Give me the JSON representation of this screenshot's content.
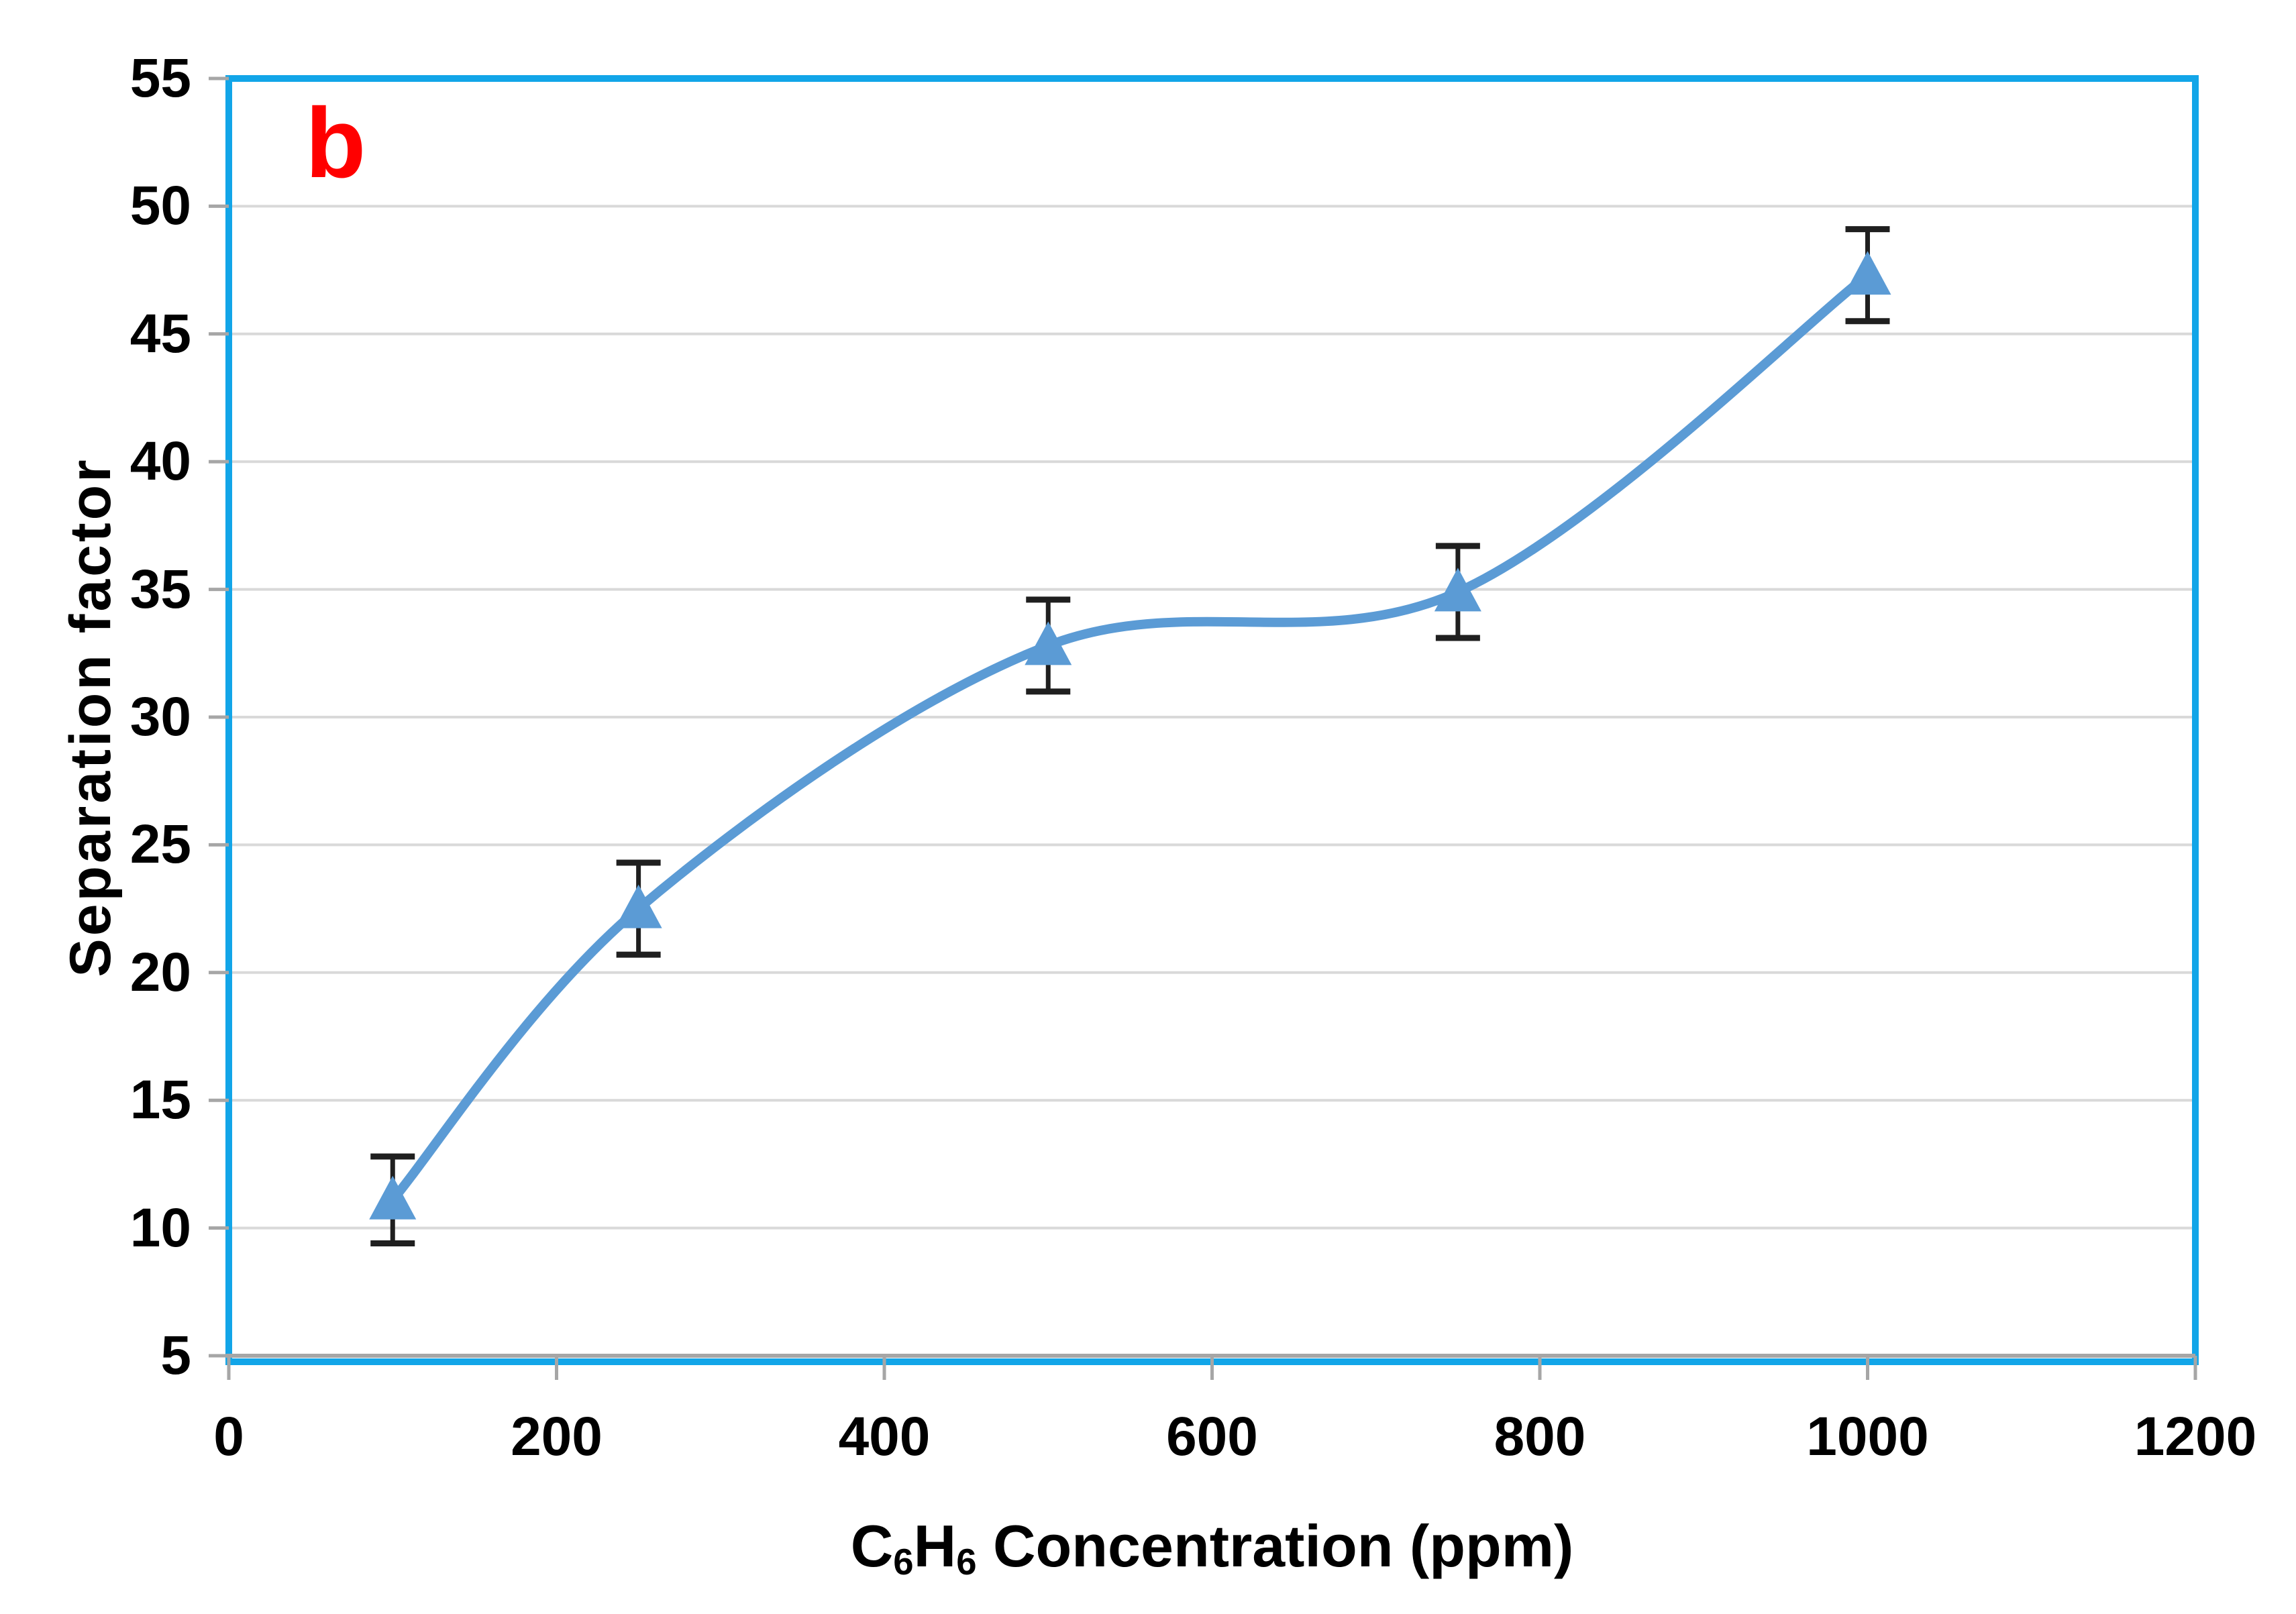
{
  "figure": {
    "panel_label": "b",
    "background_color": "#FFFFFF"
  },
  "chart_data": {
    "type": "line",
    "series": [
      {
        "name": "Separation factor",
        "x": [
          100,
          250,
          500,
          750,
          1000
        ],
        "y": [
          11.1,
          22.5,
          32.8,
          34.9,
          47.3
        ],
        "y_error": [
          1.7,
          1.8,
          1.8,
          1.8,
          1.8
        ],
        "marker": "triangle-up",
        "smooth": true
      }
    ],
    "xlabel_parts": [
      {
        "text": "C"
      },
      {
        "text": "6",
        "subscript": true
      },
      {
        "text": "H"
      },
      {
        "text": "6",
        "subscript": true
      },
      {
        "text": " Concentration (ppm)"
      }
    ],
    "xlabel_plain": "C6H6 Concentration (ppm)",
    "ylabel": "Separation factor",
    "xlim": [
      0,
      1200
    ],
    "ylim": [
      5,
      55
    ],
    "xticks": [
      0,
      200,
      400,
      600,
      800,
      1000,
      1200
    ],
    "yticks": [
      5,
      10,
      15,
      20,
      25,
      30,
      35,
      40,
      45,
      50,
      55
    ],
    "grid": "horizontal",
    "legend": "none"
  },
  "style": {
    "line_color": "#5B9BD5",
    "marker_color": "#5B9BD5",
    "plot_border_color": "#12A5E8",
    "gridline_color": "#D9D9D9",
    "axis_line_color": "#A6A6A6",
    "tick_color": "#A6A6A6",
    "error_bar_color": "#1F1F1F",
    "panel_label_color": "#FF0000",
    "text_color": "#000000"
  }
}
